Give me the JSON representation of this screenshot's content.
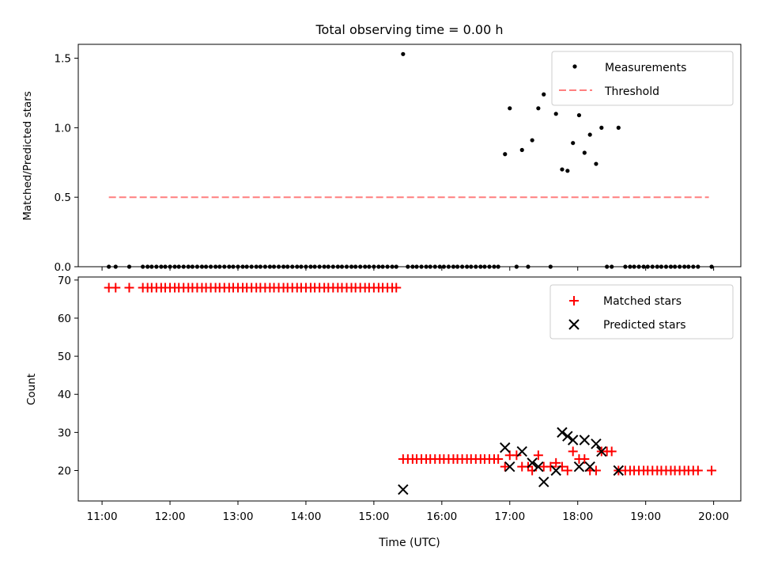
{
  "chart_data": [
    {
      "type": "scatter",
      "title": "Total observing time = 0.00 h",
      "ylabel": "Matched/Predicted stars",
      "ylim": [
        0,
        1.6
      ],
      "yticks": [
        "0.0",
        "0.5",
        "1.0",
        "1.5"
      ],
      "xlim": [
        10.65,
        20.4
      ],
      "legend": "top-right",
      "legend_entries": [
        "Measurements",
        "Threshold"
      ],
      "colors": {
        "measurements": "#000000",
        "threshold": "#ff7f7f"
      },
      "threshold": {
        "y": 0.5,
        "x": [
          11.1,
          19.93
        ]
      },
      "series": [
        {
          "name": "Measurements",
          "x": [
            11.1,
            11.2,
            11.4,
            11.6,
            11.67,
            11.73,
            11.8,
            11.87,
            11.93,
            12.0,
            12.07,
            12.13,
            12.2,
            12.27,
            12.33,
            12.4,
            12.47,
            12.53,
            12.6,
            12.67,
            12.73,
            12.8,
            12.87,
            12.93,
            13.0,
            13.07,
            13.13,
            13.2,
            13.27,
            13.33,
            13.4,
            13.47,
            13.53,
            13.6,
            13.67,
            13.73,
            13.8,
            13.87,
            13.93,
            14.0,
            14.07,
            14.13,
            14.2,
            14.27,
            14.33,
            14.4,
            14.47,
            14.53,
            14.6,
            14.67,
            14.73,
            14.8,
            14.87,
            14.93,
            15.0,
            15.07,
            15.13,
            15.2,
            15.27,
            15.33,
            15.43,
            15.5,
            15.57,
            15.63,
            15.7,
            15.77,
            15.83,
            15.9,
            15.97,
            16.03,
            16.1,
            16.17,
            16.23,
            16.3,
            16.37,
            16.43,
            16.5,
            16.57,
            16.63,
            16.7,
            16.77,
            16.83,
            16.93,
            17.0,
            17.1,
            17.18,
            17.27,
            17.33,
            17.42,
            17.5,
            17.6,
            17.68,
            17.77,
            17.85,
            17.93,
            18.02,
            18.1,
            18.18,
            18.27,
            18.35,
            18.43,
            18.5,
            18.6,
            18.7,
            18.77,
            18.83,
            18.9,
            18.97,
            19.03,
            19.1,
            19.17,
            19.23,
            19.3,
            19.37,
            19.43,
            19.5,
            19.57,
            19.63,
            19.7,
            19.77,
            19.97
          ],
          "y": [
            0,
            0,
            0,
            0,
            0,
            0,
            0,
            0,
            0,
            0,
            0,
            0,
            0,
            0,
            0,
            0,
            0,
            0,
            0,
            0,
            0,
            0,
            0,
            0,
            0,
            0,
            0,
            0,
            0,
            0,
            0,
            0,
            0,
            0,
            0,
            0,
            0,
            0,
            0,
            0,
            0,
            0,
            0,
            0,
            0,
            0,
            0,
            0,
            0,
            0,
            0,
            0,
            0,
            0,
            0,
            0,
            0,
            0,
            0,
            0,
            1.53,
            0,
            0,
            0,
            0,
            0,
            0,
            0,
            0,
            0,
            0,
            0,
            0,
            0,
            0,
            0,
            0,
            0,
            0,
            0,
            0,
            0,
            0.81,
            1.14,
            0,
            0.84,
            0,
            0.91,
            1.14,
            1.24,
            0,
            1.1,
            0.7,
            0.69,
            0.89,
            1.09,
            0.82,
            0.95,
            0.74,
            1.0,
            0,
            0,
            1.0,
            0,
            0,
            0,
            0,
            0,
            0,
            0,
            0,
            0,
            0,
            0,
            0,
            0,
            0,
            0,
            0,
            0,
            0
          ]
        }
      ]
    },
    {
      "type": "scatter",
      "xlabel": "Time (UTC)",
      "ylabel": "Count",
      "ylim": [
        12,
        70.8
      ],
      "yticks": [
        "20",
        "30",
        "40",
        "50",
        "60",
        "70"
      ],
      "xlim": [
        10.65,
        20.4
      ],
      "xticks": [
        "11:00",
        "12:00",
        "13:00",
        "14:00",
        "15:00",
        "16:00",
        "17:00",
        "18:00",
        "19:00",
        "20:00"
      ],
      "legend": "top-right",
      "legend_entries": [
        "Matched stars",
        "Predicted stars"
      ],
      "colors": {
        "matched": "#ff0000",
        "predicted": "#000000"
      },
      "series": [
        {
          "name": "Matched stars",
          "x": [
            11.1,
            11.2,
            11.4,
            11.6,
            11.67,
            11.73,
            11.8,
            11.87,
            11.93,
            12.0,
            12.07,
            12.13,
            12.2,
            12.27,
            12.33,
            12.4,
            12.47,
            12.53,
            12.6,
            12.67,
            12.73,
            12.8,
            12.87,
            12.93,
            13.0,
            13.07,
            13.13,
            13.2,
            13.27,
            13.33,
            13.4,
            13.47,
            13.53,
            13.6,
            13.67,
            13.73,
            13.8,
            13.87,
            13.93,
            14.0,
            14.07,
            14.13,
            14.2,
            14.27,
            14.33,
            14.4,
            14.47,
            14.53,
            14.6,
            14.67,
            14.73,
            14.8,
            14.87,
            14.93,
            15.0,
            15.07,
            15.13,
            15.2,
            15.27,
            15.33,
            15.43,
            15.5,
            15.57,
            15.63,
            15.7,
            15.77,
            15.83,
            15.9,
            15.97,
            16.03,
            16.1,
            16.17,
            16.23,
            16.3,
            16.37,
            16.43,
            16.5,
            16.57,
            16.63,
            16.7,
            16.77,
            16.83,
            16.93,
            17.0,
            17.1,
            17.18,
            17.27,
            17.33,
            17.42,
            17.5,
            17.6,
            17.68,
            17.77,
            17.85,
            17.93,
            18.02,
            18.1,
            18.18,
            18.27,
            18.35,
            18.43,
            18.5,
            18.6,
            18.7,
            18.77,
            18.83,
            18.9,
            18.97,
            19.03,
            19.1,
            19.17,
            19.23,
            19.3,
            19.37,
            19.43,
            19.5,
            19.57,
            19.63,
            19.7,
            19.77,
            19.97
          ],
          "y": [
            68,
            68,
            68,
            68,
            68,
            68,
            68,
            68,
            68,
            68,
            68,
            68,
            68,
            68,
            68,
            68,
            68,
            68,
            68,
            68,
            68,
            68,
            68,
            68,
            68,
            68,
            68,
            68,
            68,
            68,
            68,
            68,
            68,
            68,
            68,
            68,
            68,
            68,
            68,
            68,
            68,
            68,
            68,
            68,
            68,
            68,
            68,
            68,
            68,
            68,
            68,
            68,
            68,
            68,
            68,
            68,
            68,
            68,
            68,
            68,
            23,
            23,
            23,
            23,
            23,
            23,
            23,
            23,
            23,
            23,
            23,
            23,
            23,
            23,
            23,
            23,
            23,
            23,
            23,
            23,
            23,
            23,
            21,
            24,
            24,
            21,
            21,
            20,
            24,
            21,
            21,
            22,
            21,
            20,
            25,
            23,
            23,
            20,
            20,
            25,
            25,
            25,
            20,
            20,
            20,
            20,
            20,
            20,
            20,
            20,
            20,
            20,
            20,
            20,
            20,
            20,
            20,
            20,
            20,
            20,
            20
          ]
        },
        {
          "name": "Predicted stars",
          "x": [
            15.43,
            16.93,
            17.0,
            17.18,
            17.33,
            17.42,
            17.5,
            17.68,
            17.77,
            17.85,
            17.93,
            18.02,
            18.1,
            18.18,
            18.27,
            18.35,
            18.6
          ],
          "y": [
            15,
            26,
            21,
            25,
            22,
            21,
            17,
            20,
            30,
            29,
            28,
            21,
            28,
            21,
            27,
            25,
            20
          ]
        }
      ]
    }
  ]
}
